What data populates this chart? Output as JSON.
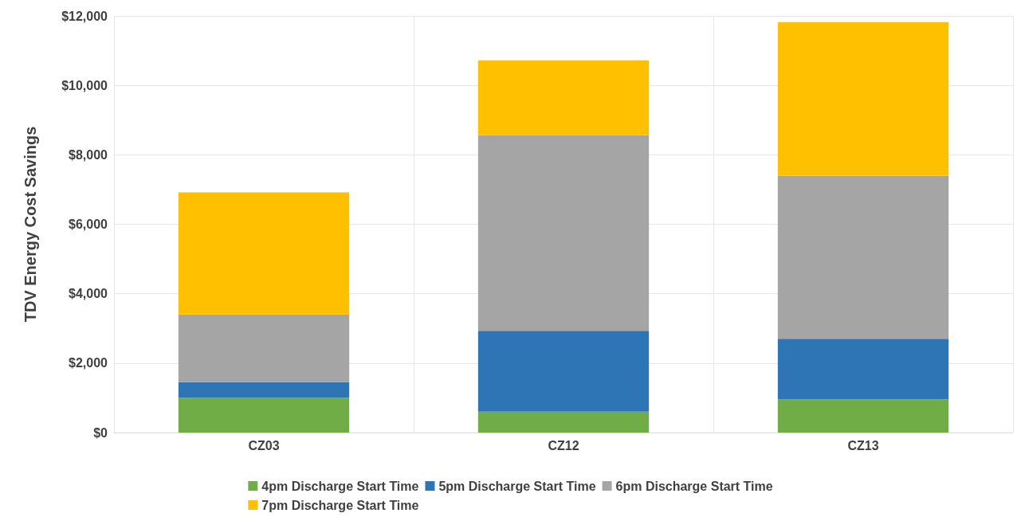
{
  "chart_data": {
    "type": "bar",
    "stacked": true,
    "ylabel": "TDV Energy Cost Savings",
    "categories": [
      "CZ03",
      "CZ12",
      "CZ13"
    ],
    "series": [
      {
        "name": "4pm Discharge Start Time",
        "color": "#70ad47",
        "values": [
          1000,
          600,
          950
        ]
      },
      {
        "name": "5pm Discharge Start Time",
        "color": "#2e75b6",
        "values": [
          450,
          2330,
          1750
        ]
      },
      {
        "name": "6pm Discharge Start Time",
        "color": "#a5a5a5",
        "values": [
          1950,
          5640,
          4700
        ]
      },
      {
        "name": "7pm Discharge Start Time",
        "color": "#ffc000",
        "values": [
          3520,
          2150,
          4420
        ]
      }
    ],
    "ylim": [
      0,
      12000
    ],
    "yticks": [
      {
        "value": 0,
        "label": "$0"
      },
      {
        "value": 2000,
        "label": "$2,000"
      },
      {
        "value": 4000,
        "label": "$4,000"
      },
      {
        "value": 6000,
        "label": "$6,000"
      },
      {
        "value": 8000,
        "label": "$8,000"
      },
      {
        "value": 10000,
        "label": "$10,000"
      },
      {
        "value": 12000,
        "label": "$12,000"
      }
    ],
    "grid": true,
    "legend": "bottom"
  }
}
